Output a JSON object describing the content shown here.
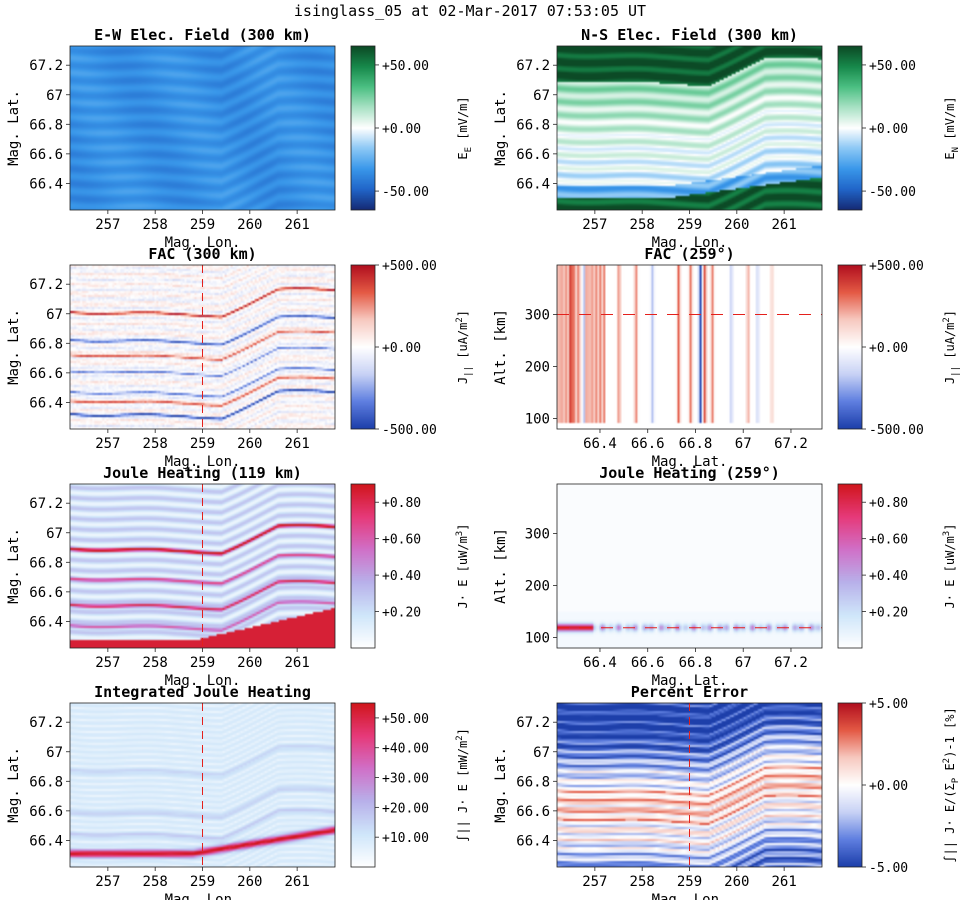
{
  "figure_title": "isinglass_05 at 02-Mar-2017 07:53:05 UT",
  "colors": {
    "greenblue": [
      "#152a75",
      "#2166c9",
      "#3a98ea",
      "#8cc8f5",
      "#ffffff",
      "#a9e2c5",
      "#4cc083",
      "#17894b",
      "#0c4a26"
    ],
    "bwr": [
      "#1d3faa",
      "#5f7fe0",
      "#c8d2f5",
      "#ffffff",
      "#f7c9c0",
      "#e45a45",
      "#b10f1f"
    ],
    "heat": [
      "#ffffff",
      "#cfe6fa",
      "#b8b1ea",
      "#d070c8",
      "#e63a7a",
      "#d0161c"
    ],
    "dash": "#e4201c"
  },
  "chart_data": [
    {
      "id": "ew-field",
      "type": "heatmap",
      "title": "E-W Elec. Field (300 km)",
      "xlabel": "Mag. Lon.",
      "ylabel": "Mag. Lat.",
      "xlim": [
        256.2,
        261.8
      ],
      "ylim": [
        66.22,
        67.33
      ],
      "xticks": [
        257,
        258,
        259,
        260,
        261
      ],
      "yticks": [
        66.4,
        66.6,
        66.8,
        67,
        67.2
      ],
      "ytick_labels": [
        "66.4",
        "66.6",
        "66.8",
        "67",
        "67.2"
      ],
      "colormap": "greenblue",
      "clim": [
        -65,
        65
      ],
      "colorbar": {
        "ticks": [
          50,
          0,
          -50
        ],
        "labels": [
          "+50.00",
          "+0.00",
          "-50.00"
        ],
        "label": "E_E [mV/m]"
      },
      "field": {
        "base": -35,
        "bands": 10,
        "band_amp": 4
      }
    },
    {
      "id": "ns-field",
      "type": "heatmap",
      "title": "N-S Elec. Field (300 km)",
      "xlabel": "Mag. Lon.",
      "ylabel": "Mag. Lat.",
      "xlim": [
        256.2,
        261.8
      ],
      "ylim": [
        66.22,
        67.33
      ],
      "xticks": [
        257,
        258,
        259,
        260,
        261
      ],
      "yticks": [
        66.4,
        66.6,
        66.8,
        67,
        67.2
      ],
      "ytick_labels": [
        "66.4",
        "66.6",
        "66.8",
        "67",
        "67.2"
      ],
      "colormap": "greenblue",
      "clim": [
        -65,
        65
      ],
      "colorbar": {
        "ticks": [
          50,
          0,
          -50
        ],
        "labels": [
          "+50.00",
          "+0.00",
          "-50.00"
        ],
        "label": "E_N [mV/m]"
      },
      "field": {
        "top": 62,
        "mid": 18,
        "low": -12,
        "bottom": 60
      }
    },
    {
      "id": "fac-map",
      "type": "heatmap",
      "title": "FAC (300 km)",
      "xlabel": "Mag. Lon.",
      "ylabel": "Mag. Lat.",
      "xlim": [
        256.2,
        261.8
      ],
      "ylim": [
        66.22,
        67.33
      ],
      "xticks": [
        257,
        258,
        259,
        260,
        261
      ],
      "yticks": [
        66.4,
        66.6,
        66.8,
        67,
        67.2
      ],
      "ytick_labels": [
        "66.4",
        "66.6",
        "66.8",
        "67",
        "67.2"
      ],
      "colormap": "bwr",
      "clim": [
        -500,
        500
      ],
      "colorbar": {
        "ticks": [
          500,
          0,
          -500
        ],
        "labels": [
          "+500.00",
          "+0.00",
          "-500.00"
        ],
        "label": "J_|| [uA/m^2]"
      },
      "cut": {
        "orientation": "vertical",
        "value": 259
      }
    },
    {
      "id": "fac-profile",
      "type": "heatmap",
      "title": "FAC (259°)",
      "xlabel": "Mag. Lat.",
      "ylabel": "Alt. [km]",
      "xlim": [
        66.22,
        67.33
      ],
      "ylim": [
        80,
        395
      ],
      "xticks": [
        66.4,
        66.6,
        66.8,
        67,
        67.2
      ],
      "xtick_labels": [
        "66.4",
        "66.6",
        "66.8",
        "67",
        "67.2"
      ],
      "yticks": [
        100,
        200,
        300
      ],
      "colormap": "bwr",
      "clim": [
        -500,
        500
      ],
      "colorbar": {
        "ticks": [
          500,
          0,
          -500
        ],
        "labels": [
          "+500.00",
          "+0.00",
          "-500.00"
        ],
        "label": "J_|| [uA/m^2]"
      },
      "cut": {
        "orientation": "horizontal",
        "value": 300
      }
    },
    {
      "id": "joule-map",
      "type": "heatmap",
      "title": "Joule Heating (119 km)",
      "xlabel": "Mag. Lon.",
      "ylabel": "Mag. Lat.",
      "xlim": [
        256.2,
        261.8
      ],
      "ylim": [
        66.22,
        67.33
      ],
      "xticks": [
        257,
        258,
        259,
        260,
        261
      ],
      "yticks": [
        66.4,
        66.6,
        66.8,
        67,
        67.2
      ],
      "ytick_labels": [
        "66.4",
        "66.6",
        "66.8",
        "67",
        "67.2"
      ],
      "colormap": "heat",
      "clim": [
        0,
        0.9
      ],
      "colorbar": {
        "ticks": [
          0.8,
          0.6,
          0.4,
          0.2
        ],
        "labels": [
          "+0.80",
          "+0.60",
          "+0.40",
          "+0.20"
        ],
        "label": "J· E [uW/m^3]"
      },
      "cut": {
        "orientation": "vertical",
        "value": 259
      }
    },
    {
      "id": "joule-profile",
      "type": "heatmap",
      "title": "Joule Heating (259°)",
      "xlabel": "Mag. Lat.",
      "ylabel": "Alt. [km]",
      "xlim": [
        66.22,
        67.33
      ],
      "ylim": [
        80,
        395
      ],
      "xticks": [
        66.4,
        66.6,
        66.8,
        67,
        67.2
      ],
      "xtick_labels": [
        "66.4",
        "66.6",
        "66.8",
        "67",
        "67.2"
      ],
      "yticks": [
        100,
        200,
        300
      ],
      "colormap": "heat",
      "clim": [
        0,
        0.9
      ],
      "colorbar": {
        "ticks": [
          0.8,
          0.6,
          0.4,
          0.2
        ],
        "labels": [
          "+0.80",
          "+0.60",
          "+0.40",
          "+0.20"
        ],
        "label": "J· E [uW/m^3]"
      },
      "cut": {
        "orientation": "horizontal",
        "value": 119
      }
    },
    {
      "id": "integrated-joule",
      "type": "heatmap",
      "title": "Integrated Joule Heating",
      "xlabel": "Mag. Lon.",
      "ylabel": "Mag. Lat.",
      "xlim": [
        256.2,
        261.8
      ],
      "ylim": [
        66.22,
        67.33
      ],
      "xticks": [
        257,
        258,
        259,
        260,
        261
      ],
      "yticks": [
        66.4,
        66.6,
        66.8,
        67,
        67.2
      ],
      "ytick_labels": [
        "66.4",
        "66.6",
        "66.8",
        "67",
        "67.2"
      ],
      "colormap": "heat",
      "clim": [
        0,
        55
      ],
      "colorbar": {
        "ticks": [
          50,
          40,
          30,
          20,
          10
        ],
        "labels": [
          "+50.00",
          "+40.00",
          "+30.00",
          "+20.00",
          "+10.00"
        ],
        "label": "∫|| J· E [mW/m^2]"
      },
      "cut": {
        "orientation": "vertical",
        "value": 259
      }
    },
    {
      "id": "percent-error",
      "type": "heatmap",
      "title": "Percent Error",
      "xlabel": "Mag. Lon.",
      "ylabel": "Mag. Lat.",
      "xlim": [
        256.2,
        261.8
      ],
      "ylim": [
        66.22,
        67.33
      ],
      "xticks": [
        257,
        258,
        259,
        260,
        261
      ],
      "yticks": [
        66.4,
        66.6,
        66.8,
        67,
        67.2
      ],
      "ytick_labels": [
        "66.4",
        "66.6",
        "66.8",
        "67",
        "67.2"
      ],
      "colormap": "bwr",
      "clim": [
        -5,
        5
      ],
      "colorbar": {
        "ticks": [
          5,
          0,
          -5
        ],
        "labels": [
          "+5.00",
          "+0.00",
          "-5.00"
        ],
        "label": "∫|| J· E/(Σ_P E^2)-1 [%]"
      },
      "cut": {
        "orientation": "vertical",
        "value": 259
      }
    }
  ]
}
